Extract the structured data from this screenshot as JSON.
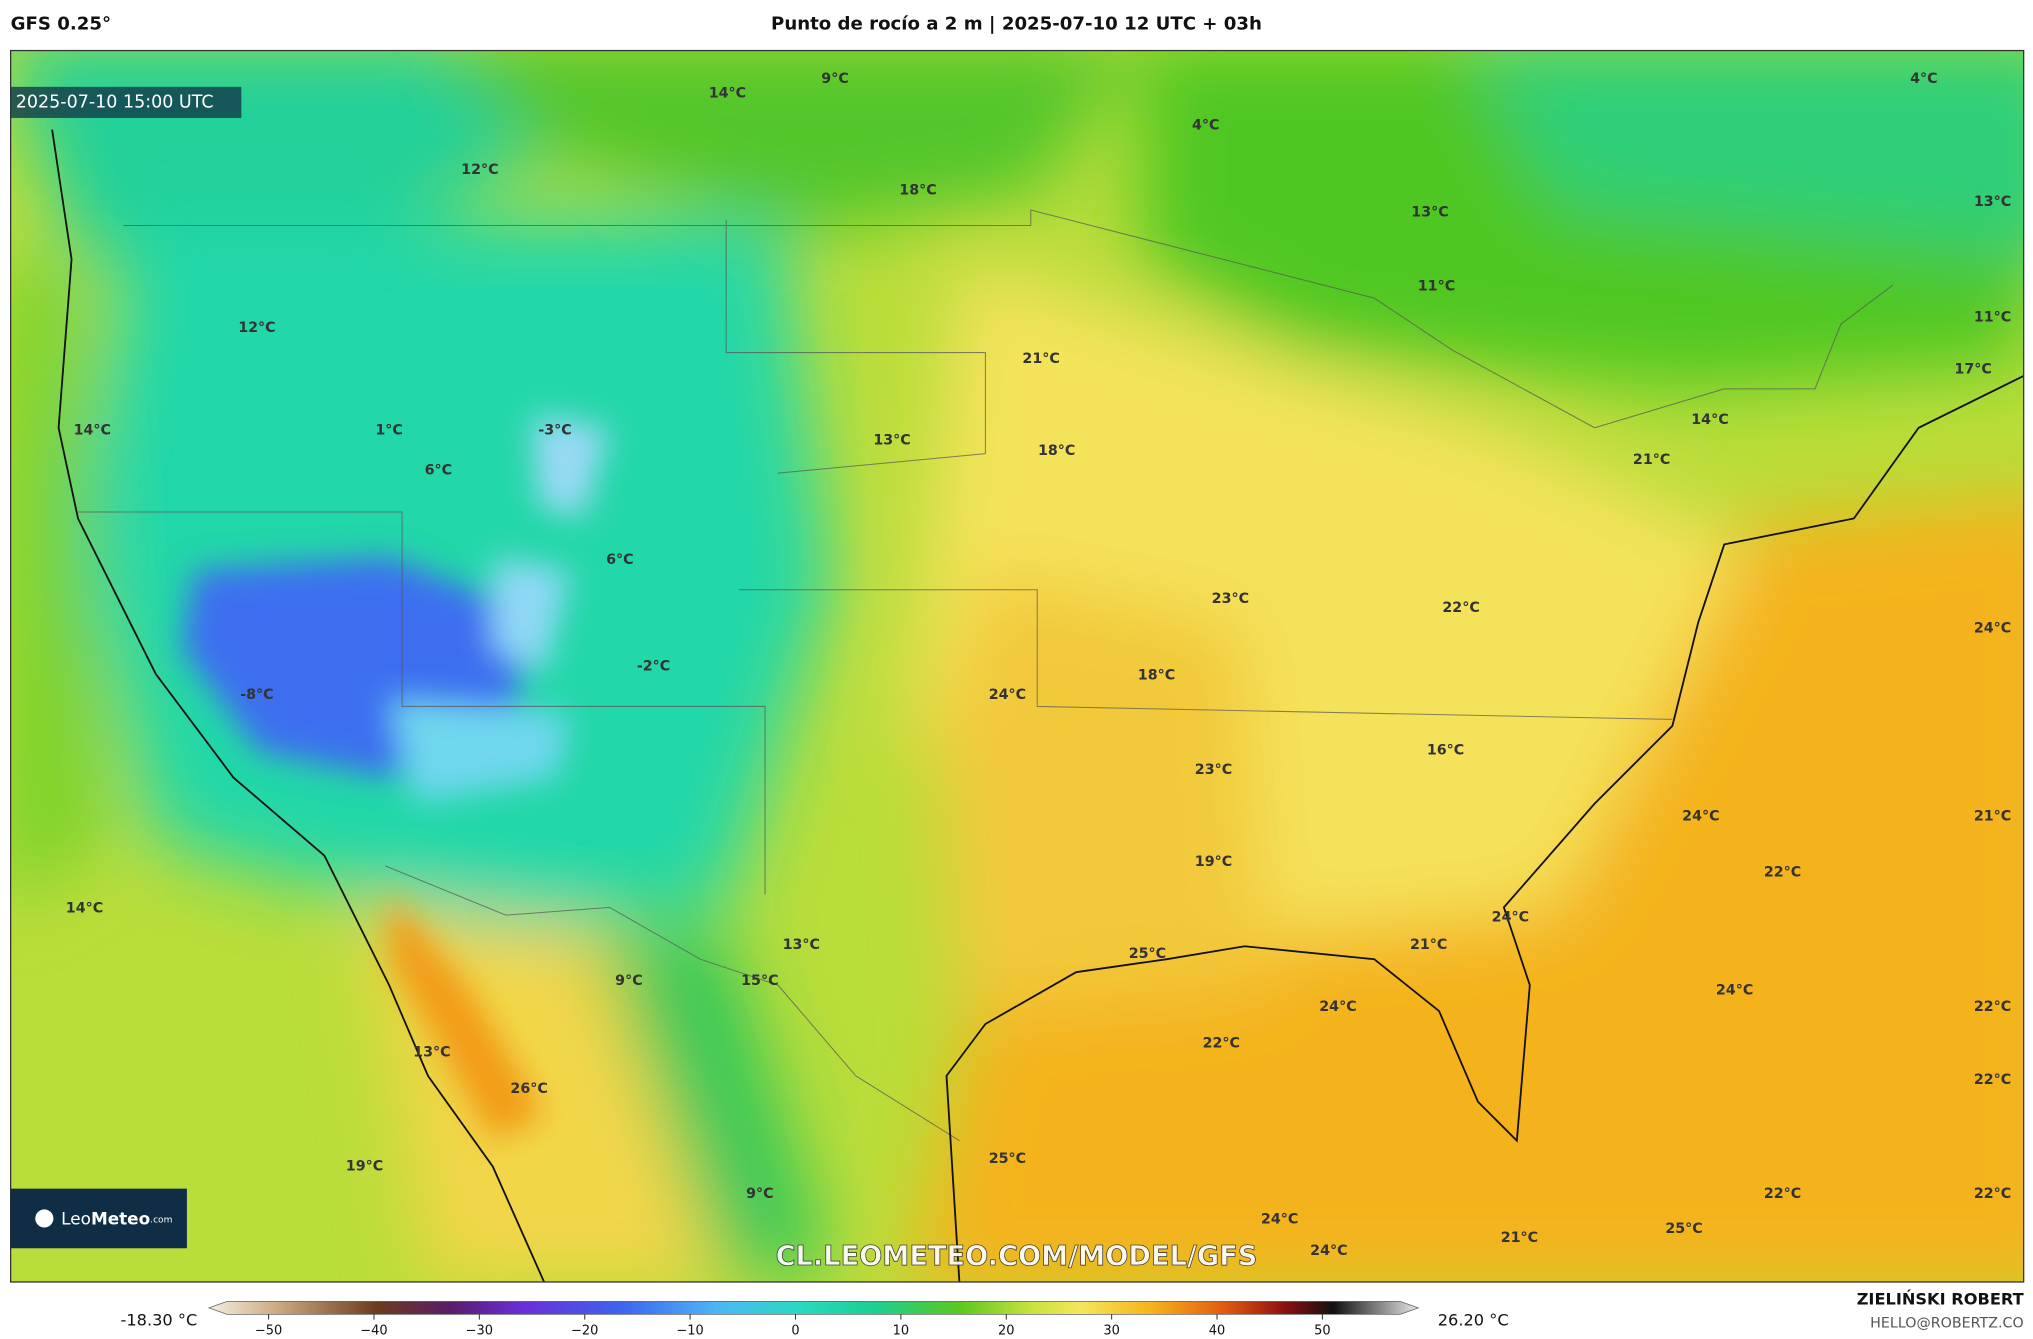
{
  "header": {
    "model": "GFS 0.25°",
    "title": "Punto de rocío a 2 m | 2025-07-10 12 UTC + 03h"
  },
  "map": {
    "timestamp": "2025-07-10 15:00 UTC",
    "watermark": "CL.LEOMETEO.COM/MODEL/GFS",
    "logo": {
      "part1": "Leo",
      "part2": "Meteo",
      "suffix": ".com"
    },
    "labels": [
      "14°C",
      "9°C",
      "4°C",
      "12°C",
      "4°C",
      "18°C",
      "13°C",
      "13°C",
      "11°C",
      "11°C",
      "12°C",
      "21°C",
      "17°C",
      "14°C",
      "1°C",
      "-3°C",
      "13°C",
      "14°C",
      "18°C",
      "21°C",
      "6°C",
      "6°C",
      "23°C",
      "22°C",
      "24°C",
      "-2°C",
      "18°C",
      "-8°C",
      "24°C",
      "16°C",
      "23°C",
      "24°C",
      "21°C",
      "19°C",
      "22°C",
      "14°C",
      "24°C",
      "13°C",
      "25°C",
      "21°C",
      "9°C",
      "15°C",
      "24°C",
      "24°C",
      "22°C",
      "22°C",
      "13°C",
      "22°C",
      "26°C",
      "25°C",
      "19°C",
      "9°C",
      "22°C",
      "22°C",
      "24°C",
      "25°C",
      "21°C",
      "24°C"
    ]
  },
  "colorbar": {
    "min": "-18.30 °C",
    "max": "26.20 °C",
    "ticks": [
      "−50",
      "−40",
      "−30",
      "−20",
      "−10",
      "0",
      "10",
      "20",
      "30",
      "40",
      "50"
    ]
  },
  "credit": {
    "author": "ZIELIŃSKI ROBERT",
    "email": "HELLO@ROBERTZ.CO"
  }
}
